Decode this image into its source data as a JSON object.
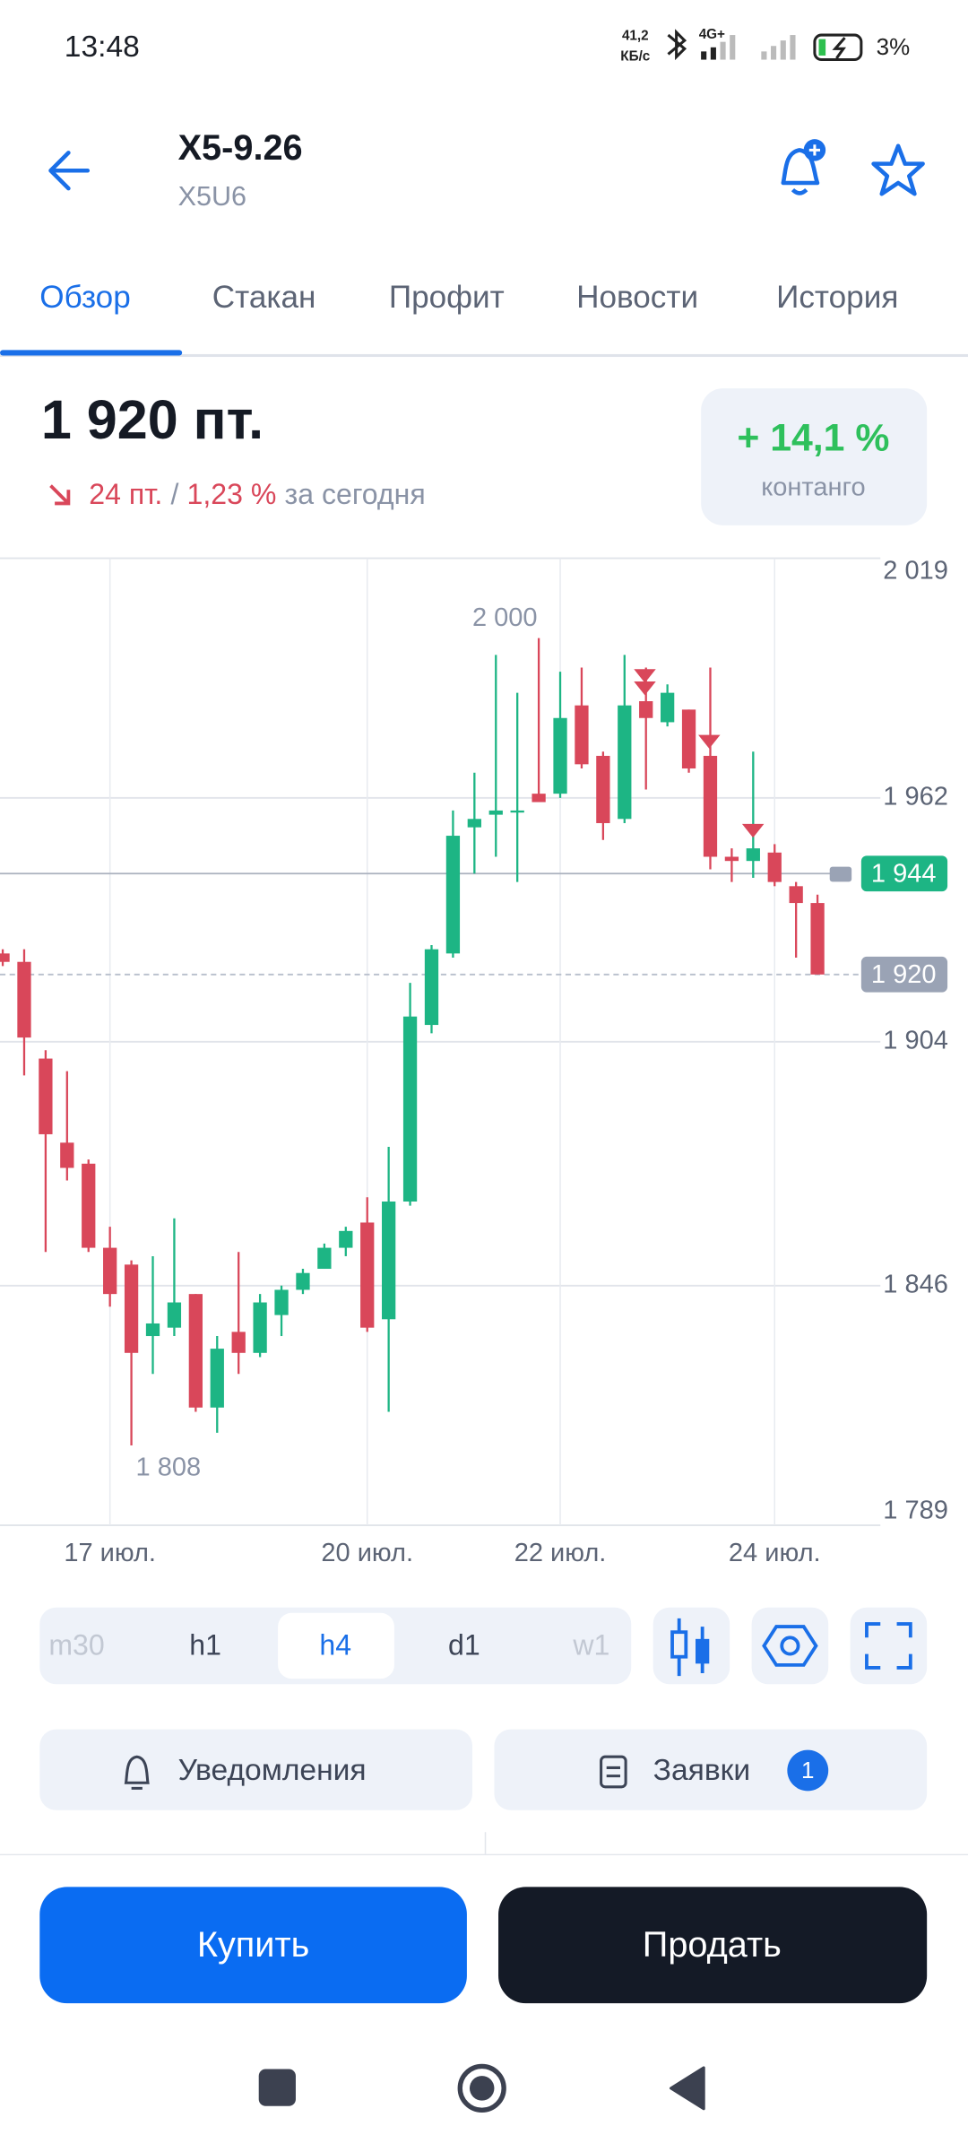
{
  "status_bar": {
    "time": "13:48",
    "network_speed": "41,2",
    "network_unit": "КБ/с",
    "network_type": "4G+",
    "battery": "3%"
  },
  "header": {
    "title": "X5-9.26",
    "ticker": "X5U6"
  },
  "tabs": [
    "Обзор",
    "Стакан",
    "Профит",
    "Новости",
    "История"
  ],
  "price": {
    "value": "1 920 пт.",
    "change": "24 пт.",
    "separator": "/",
    "change_pct": "1,23 %",
    "period": "за сегодня"
  },
  "contango": {
    "value": "+ 14,1 %",
    "label": "контанго"
  },
  "chart_data": {
    "type": "candlestick",
    "categories": [
      null,
      null,
      null,
      null,
      null,
      "17 июл.",
      null,
      null,
      null,
      null,
      null,
      null,
      null,
      null,
      null,
      null,
      null,
      "20 июл.",
      null,
      null,
      null,
      null,
      null,
      null,
      null,
      null,
      "22 июл.",
      null,
      null,
      null,
      null,
      null,
      null,
      null,
      null,
      null,
      "24 июл.",
      null,
      null
    ],
    "open": [
      1925,
      1923,
      1900,
      1880,
      1875,
      1855,
      1851,
      1834,
      1836,
      1844,
      1817,
      1835,
      1830,
      1839,
      1845,
      1850,
      1855,
      1861,
      1838,
      1866,
      1908,
      1925,
      1955,
      1958,
      1959,
      1963,
      1963,
      1984,
      1972,
      1957,
      1985,
      1980,
      1983,
      1972,
      1948,
      1947,
      1949,
      1941,
      1937
    ],
    "high": [
      1926,
      1926,
      1902,
      1897,
      1876,
      1860,
      1852,
      1853,
      1862,
      1844,
      1834,
      1854,
      1844,
      1846,
      1850,
      1856,
      1860,
      1867,
      1879,
      1918,
      1927,
      1959,
      1968,
      1996,
      1987,
      2000,
      1992,
      1993,
      1973,
      1996,
      1993,
      1989,
      1983,
      1993,
      1950,
      1973,
      1951,
      1942,
      1939
    ],
    "low": [
      1922,
      1896,
      1854,
      1871,
      1854,
      1841,
      1808,
      1825,
      1834,
      1816,
      1811,
      1825,
      1829,
      1834,
      1844,
      1850,
      1853,
      1835,
      1816,
      1865,
      1906,
      1924,
      1944,
      1948,
      1942,
      1961,
      1962,
      1969,
      1952,
      1956,
      1964,
      1979,
      1968,
      1945,
      1942,
      1943,
      1941,
      1924,
      1920
    ],
    "close": [
      1923,
      1905,
      1882,
      1874,
      1855,
      1844,
      1830,
      1837,
      1842,
      1817,
      1831,
      1830,
      1842,
      1845,
      1849,
      1855,
      1859,
      1836,
      1866,
      1910,
      1926,
      1953,
      1957,
      1959,
      1959,
      1961,
      1981,
      1970,
      1956,
      1984,
      1981,
      1987,
      1969,
      1948,
      1947,
      1950,
      1942,
      1937,
      1920
    ],
    "up_color": "#1db584",
    "down_color": "#d9475a",
    "ylim": [
      1789,
      2019
    ],
    "yticks": [
      {
        "value": 1789,
        "label": "1 789"
      },
      {
        "value": 1846,
        "label": "1 846"
      },
      {
        "value": 1904,
        "label": "1 904"
      },
      {
        "value": 1962,
        "label": "1 962"
      },
      {
        "value": 2019,
        "label": "2 019"
      }
    ],
    "grid": true,
    "high_label": {
      "value": 2000,
      "label": "2 000"
    },
    "low_label": {
      "value": 1808,
      "label": "1 808"
    },
    "price_lines": [
      {
        "value": 1944,
        "label": "1 944",
        "color": "#1db584",
        "style": "solid"
      },
      {
        "value": 1920,
        "label": "1 920",
        "color": "#9aa3b5",
        "style": "dashed"
      }
    ]
  },
  "timeframes": [
    "m30",
    "h1",
    "h4",
    "d1",
    "w1"
  ],
  "buttons": {
    "alerts": "Уведомления",
    "orders": "Заявки",
    "orders_count": 1,
    "buy": "Купить",
    "sell": "Продать"
  }
}
